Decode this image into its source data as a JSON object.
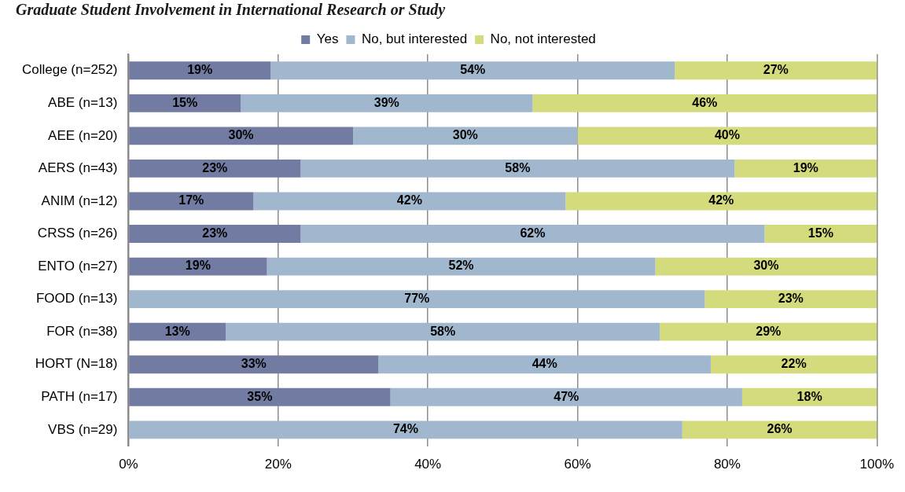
{
  "chart_data": {
    "type": "bar",
    "orientation": "horizontal",
    "stacked": true,
    "title": "Graduate Student Involvement in International Research or Study",
    "categories": [
      "College (n=252)",
      "ABE (n=13)",
      "AEE (n=20)",
      "AERS (n=43)",
      "ANIM (n=12)",
      "CRSS (n=26)",
      "ENTO (n=27)",
      "FOOD (n=13)",
      "FOR (n=38)",
      "HORT (N=18)",
      "PATH (n=17)",
      "VBS (n=29)"
    ],
    "series": [
      {
        "name": "Yes",
        "color": "#727ca3",
        "values": [
          19,
          15,
          30,
          23,
          16.7,
          23,
          18.5,
          0,
          13,
          33.4,
          35,
          0
        ],
        "value_labels": [
          "19%",
          "15%",
          "30%",
          "23%",
          "17%",
          "23%",
          "19%",
          null,
          "13%",
          "33%",
          "35%",
          null
        ]
      },
      {
        "name": "No, but interested",
        "color": "#a0b7ce",
        "values": [
          54,
          39,
          30,
          58,
          41.7,
          62,
          51.9,
          77,
          58,
          44.4,
          47,
          74
        ],
        "value_labels": [
          "54%",
          "39%",
          "30%",
          "58%",
          "42%",
          "62%",
          "52%",
          "77%",
          "58%",
          "44%",
          "47%",
          "74%"
        ]
      },
      {
        "name": "No, not interested",
        "color": "#d4db7c",
        "values": [
          27,
          46,
          40,
          19,
          41.6,
          15,
          29.6,
          23,
          29,
          22.2,
          18,
          26
        ],
        "value_labels": [
          "27%",
          "46%",
          "40%",
          "19%",
          "42%",
          "15%",
          "30%",
          "23%",
          "29%",
          "22%",
          "18%",
          "26%"
        ]
      }
    ],
    "xlim": [
      0,
      100
    ],
    "xticks": [
      {
        "value": 0,
        "label": "0%"
      },
      {
        "value": 20,
        "label": "20%"
      },
      {
        "value": 40,
        "label": "40%"
      },
      {
        "value": 60,
        "label": "60%"
      },
      {
        "value": 80,
        "label": "80%"
      },
      {
        "value": 100,
        "label": "100%"
      }
    ],
    "grid": "x",
    "legend": "top"
  }
}
